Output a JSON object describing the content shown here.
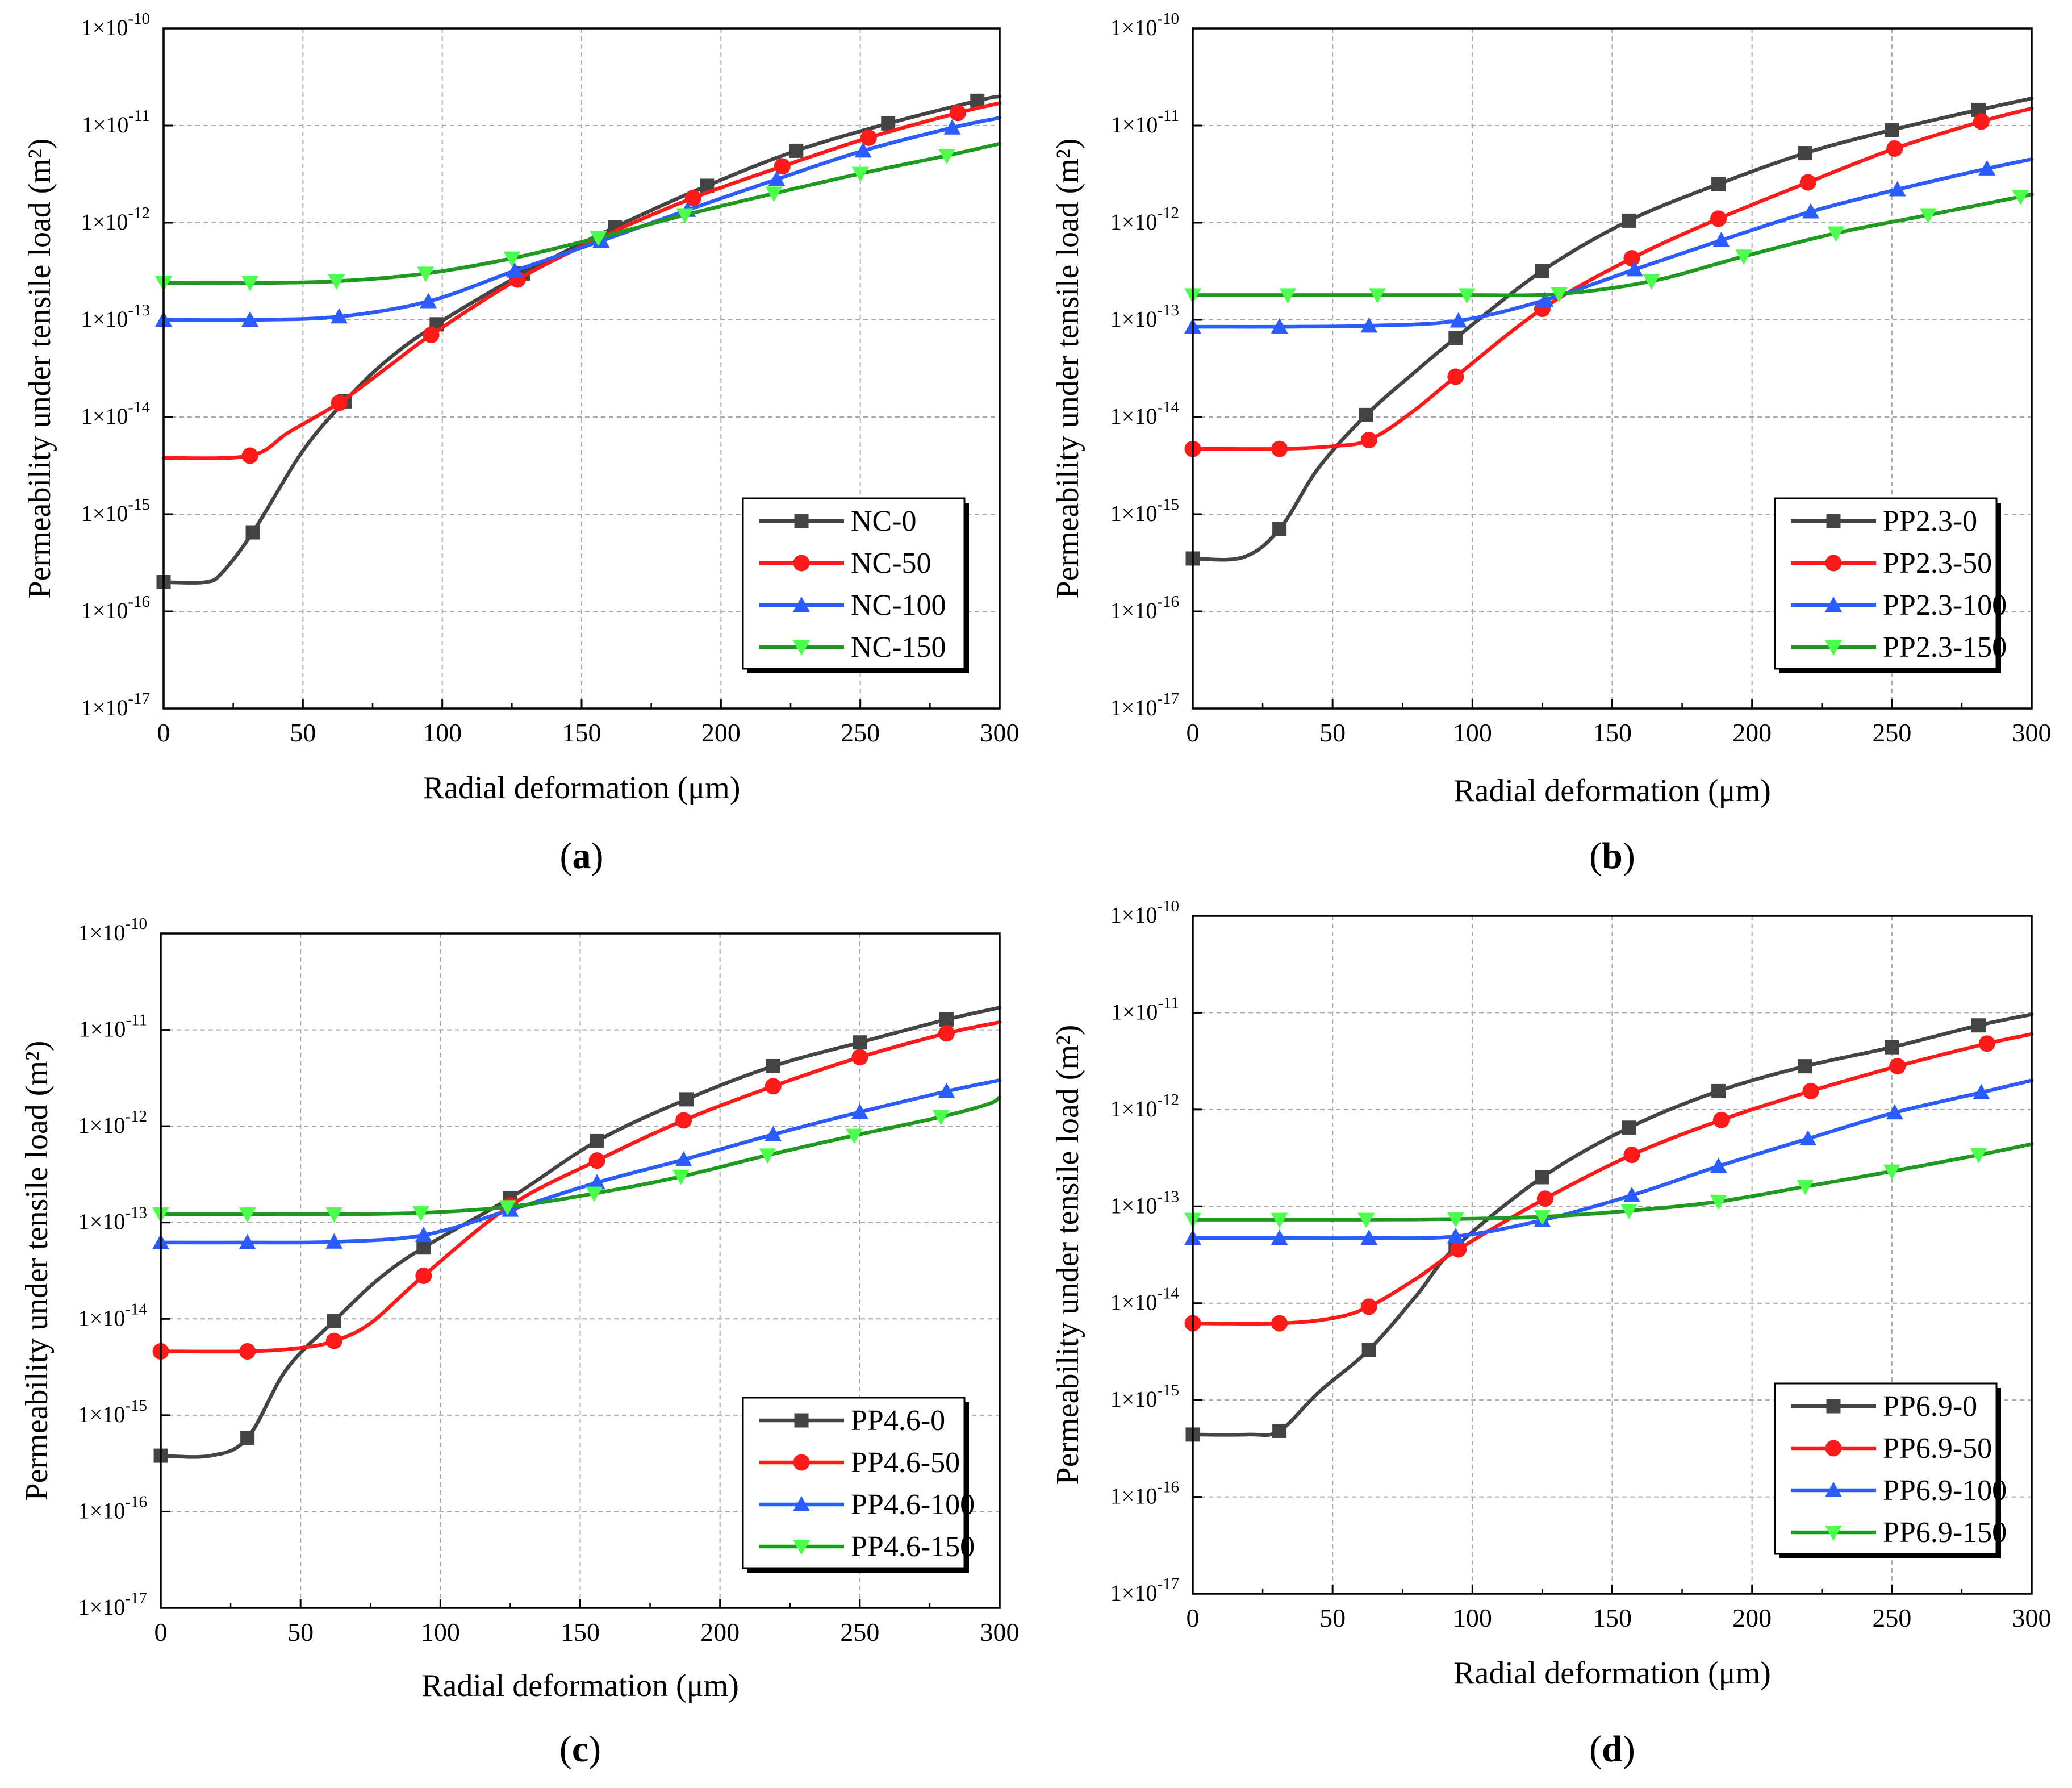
{
  "colors": {
    "NC-0": "#444444",
    "red": "#ff1a1a",
    "blue": "#2a5cff",
    "green": "#1e9a1e",
    "green_marker": "#4dff4d"
  },
  "tick_exponents": [
    "-10",
    "-11",
    "-12",
    "-13",
    "-14",
    "-15",
    "-16",
    "-17"
  ],
  "chart_data": [
    {
      "type": "line",
      "panel_label": "a",
      "xlabel": "Radial deformation (μm)",
      "ylabel": "Permeability under tensile load (m²)",
      "y_scale": "log",
      "xlim": [
        0,
        300
      ],
      "ylim": [
        1e-17,
        1e-10
      ],
      "x_ticks": [
        0,
        50,
        100,
        150,
        200,
        250,
        300
      ],
      "grid": true,
      "legend": "bottom-right",
      "series": [
        {
          "name": "NC-0",
          "color": "#444444",
          "marker": "square",
          "x": [
            0,
            15,
            21,
            32,
            50,
            65,
            80,
            98,
            129,
            162,
            195,
            227,
            260,
            292,
            300
          ],
          "y": [
            2e-16,
            2e-16,
            2.5e-16,
            6.5e-16,
            4.5e-15,
            1.45e-14,
            3.8e-14,
            9e-14,
            3e-13,
            9e-13,
            2.4e-12,
            5.5e-12,
            1.05e-11,
            1.8e-11,
            2e-11
          ],
          "markers_x": [
            0,
            32,
            65,
            98,
            129,
            162,
            195,
            227,
            260,
            292
          ]
        },
        {
          "name": "NC-50",
          "color": "#ff1a1a",
          "marker": "circle",
          "x": [
            0,
            31,
            45,
            63,
            80,
            96,
            127,
            159,
            190,
            222,
            253,
            285,
            300
          ],
          "y": [
            3.8e-15,
            4e-15,
            7e-15,
            1.4e-14,
            3.2e-14,
            7e-14,
            2.6e-13,
            7.5e-13,
            1.8e-12,
            3.8e-12,
            7.5e-12,
            1.35e-11,
            1.7e-11
          ],
          "markers_x": [
            31,
            63,
            96,
            127,
            190,
            222,
            253,
            285
          ]
        },
        {
          "name": "NC-100",
          "color": "#2a5cff",
          "marker": "triangle-up",
          "x": [
            0,
            31,
            63,
            95,
            126,
            157,
            188,
            220,
            251,
            283,
            300
          ],
          "y": [
            1e-13,
            1e-13,
            1.08e-13,
            1.55e-13,
            3.2e-13,
            6.5e-13,
            1.35e-12,
            2.8e-12,
            5.5e-12,
            9.5e-12,
            1.2e-11
          ],
          "markers_x": [
            0,
            31,
            63,
            95,
            126,
            157,
            188,
            220,
            251,
            283
          ]
        },
        {
          "name": "NC-150",
          "color": "#1e9a1e",
          "marker": "triangle-down",
          "x": [
            0,
            31,
            62,
            94,
            125,
            156,
            187,
            219,
            250,
            281,
            300
          ],
          "y": [
            2.4e-13,
            2.4e-13,
            2.5e-13,
            3e-13,
            4.3e-13,
            7e-13,
            1.2e-12,
            2e-12,
            3.2e-12,
            4.9e-12,
            6.5e-12
          ],
          "markers_x": [
            0,
            31,
            62,
            94,
            125,
            156,
            187,
            219,
            250,
            281
          ]
        }
      ]
    },
    {
      "type": "line",
      "panel_label": "b",
      "xlabel": "Radial deformation (μm)",
      "ylabel": "Permeability under tensile load (m²)",
      "y_scale": "log",
      "xlim": [
        0,
        300
      ],
      "ylim": [
        1e-17,
        1e-10
      ],
      "x_ticks": [
        0,
        50,
        100,
        150,
        200,
        250,
        300
      ],
      "grid": true,
      "legend": "bottom-right",
      "series": [
        {
          "name": "PP2.3-0",
          "color": "#444444",
          "marker": "square",
          "x": [
            0,
            18,
            31,
            45,
            62,
            80,
            94,
            125,
            156,
            188,
            219,
            250,
            281,
            300
          ],
          "y": [
            3.5e-16,
            3.6e-16,
            7e-16,
            3e-15,
            1.05e-14,
            3e-14,
            6.5e-14,
            3.2e-13,
            1.05e-12,
            2.5e-12,
            5.2e-12,
            9e-12,
            1.45e-11,
            1.9e-11
          ],
          "markers_x": [
            0,
            31,
            62,
            94,
            125,
            156,
            188,
            219,
            250,
            281
          ]
        },
        {
          "name": "PP2.3-50",
          "color": "#ff1a1a",
          "marker": "circle",
          "x": [
            0,
            31,
            50,
            63,
            78,
            94,
            125,
            157,
            188,
            220,
            251,
            282,
            300
          ],
          "y": [
            4.7e-15,
            4.7e-15,
            5e-15,
            5.8e-15,
            1.1e-14,
            2.6e-14,
            1.3e-13,
            4.3e-13,
            1.1e-12,
            2.6e-12,
            5.8e-12,
            1.1e-11,
            1.5e-11
          ],
          "markers_x": [
            0,
            31,
            63,
            94,
            125,
            157,
            188,
            220,
            251,
            282
          ]
        },
        {
          "name": "PP2.3-100",
          "color": "#2a5cff",
          "marker": "triangle-up",
          "x": [
            0,
            31,
            63,
            95,
            126,
            158,
            189,
            221,
            252,
            284,
            300
          ],
          "y": [
            8.5e-14,
            8.5e-14,
            8.7e-14,
            9.8e-14,
            1.6e-13,
            3.3e-13,
            6.6e-13,
            1.3e-12,
            2.2e-12,
            3.6e-12,
            4.5e-12
          ],
          "markers_x": [
            0,
            31,
            63,
            95,
            126,
            158,
            189,
            221,
            252,
            284
          ]
        },
        {
          "name": "PP2.3-150",
          "color": "#1e9a1e",
          "marker": "triangle-down",
          "x": [
            0,
            34,
            66,
            98,
            131,
            164,
            197,
            230,
            263,
            296,
            300
          ],
          "y": [
            1.8e-13,
            1.8e-13,
            1.8e-13,
            1.8e-13,
            1.85e-13,
            2.5e-13,
            4.5e-13,
            7.8e-13,
            1.2e-12,
            1.85e-12,
            1.95e-12
          ],
          "markers_x": [
            0,
            34,
            66,
            98,
            131,
            164,
            197,
            230,
            263,
            296
          ]
        }
      ]
    },
    {
      "type": "line",
      "panel_label": "c",
      "xlabel": "Radial deformation (μm)",
      "ylabel": "Permeability under tensile load (m²)",
      "y_scale": "log",
      "xlim": [
        0,
        300
      ],
      "ylim": [
        1e-17,
        1e-10
      ],
      "x_ticks": [
        0,
        50,
        100,
        150,
        200,
        250,
        300
      ],
      "grid": true,
      "legend": "bottom-right",
      "series": [
        {
          "name": "PP4.6-0",
          "color": "#444444",
          "marker": "square",
          "x": [
            0,
            18,
            31,
            45,
            62,
            78,
            94,
            125,
            156,
            188,
            219,
            250,
            281,
            300
          ],
          "y": [
            3.8e-16,
            3.8e-16,
            5.8e-16,
            3e-15,
            9.5e-15,
            2.6e-14,
            5.5e-14,
            1.8e-13,
            7e-13,
            1.9e-12,
            4.2e-12,
            7.4e-12,
            1.28e-11,
            1.7e-11
          ],
          "markers_x": [
            0,
            31,
            62,
            94,
            125,
            156,
            188,
            219,
            250,
            281
          ]
        },
        {
          "name": "PP4.6-50",
          "color": "#ff1a1a",
          "marker": "circle",
          "x": [
            0,
            31,
            50,
            62,
            75,
            94,
            125,
            156,
            187,
            219,
            250,
            281,
            300
          ],
          "y": [
            4.6e-15,
            4.6e-15,
            5e-15,
            5.9e-15,
            9e-15,
            2.8e-14,
            1.5e-13,
            4.4e-13,
            1.15e-12,
            2.6e-12,
            5.2e-12,
            9.2e-12,
            1.2e-11
          ],
          "markers_x": [
            0,
            31,
            62,
            94,
            125,
            156,
            187,
            219,
            250,
            281
          ]
        },
        {
          "name": "PP4.6-100",
          "color": "#2a5cff",
          "marker": "triangle-up",
          "x": [
            0,
            31,
            62,
            94,
            125,
            156,
            187,
            219,
            250,
            281,
            300
          ],
          "y": [
            6.2e-14,
            6.2e-14,
            6.3e-14,
            7.4e-14,
            1.35e-13,
            2.6e-13,
            4.5e-13,
            8.2e-13,
            1.4e-12,
            2.3e-12,
            3e-12
          ],
          "markers_x": [
            0,
            31,
            62,
            94,
            125,
            156,
            187,
            219,
            250,
            281
          ]
        },
        {
          "name": "PP4.6-150",
          "color": "#1e9a1e",
          "marker": "triangle-down",
          "x": [
            0,
            31,
            62,
            93,
            124,
            155,
            186,
            217,
            248,
            279,
            296,
            300
          ],
          "y": [
            1.22e-13,
            1.22e-13,
            1.22e-13,
            1.26e-13,
            1.45e-13,
            2e-13,
            3e-13,
            5e-13,
            8e-13,
            1.25e-12,
            1.7e-12,
            2e-12
          ],
          "markers_x": [
            0,
            31,
            62,
            93,
            124,
            155,
            186,
            217,
            248,
            279
          ]
        }
      ]
    },
    {
      "type": "line",
      "panel_label": "d",
      "xlabel": "Radial deformation (μm)",
      "ylabel": "Permeability under tensile load (m²)",
      "y_scale": "log",
      "xlim": [
        0,
        300
      ],
      "ylim": [
        1e-17,
        1e-10
      ],
      "x_ticks": [
        0,
        50,
        100,
        150,
        200,
        250,
        300
      ],
      "grid": true,
      "legend": "bottom-right",
      "series": [
        {
          "name": "PP6.9-0",
          "color": "#444444",
          "marker": "square",
          "x": [
            0,
            20,
            31,
            45,
            63,
            80,
            94,
            125,
            156,
            188,
            219,
            250,
            281,
            300
          ],
          "y": [
            4.4e-16,
            4.4e-16,
            4.8e-16,
            1.2e-15,
            3.3e-15,
            1.2e-14,
            3.8e-14,
            2e-13,
            6.5e-13,
            1.55e-12,
            2.8e-12,
            4.4e-12,
            7.4e-12,
            9.6e-12
          ],
          "markers_x": [
            0,
            31,
            63,
            94,
            125,
            156,
            188,
            219,
            250,
            281
          ]
        },
        {
          "name": "PP6.9-50",
          "color": "#ff1a1a",
          "marker": "circle",
          "x": [
            0,
            31,
            50,
            63,
            80,
            95,
            126,
            157,
            189,
            221,
            252,
            284,
            300
          ],
          "y": [
            6.2e-15,
            6.2e-15,
            7e-15,
            9.2e-15,
            1.8e-14,
            3.6e-14,
            1.2e-13,
            3.4e-13,
            7.8e-13,
            1.55e-12,
            2.8e-12,
            4.8e-12,
            6e-12
          ],
          "markers_x": [
            0,
            31,
            63,
            95,
            126,
            157,
            189,
            221,
            252,
            284
          ]
        },
        {
          "name": "PP6.9-100",
          "color": "#2a5cff",
          "marker": "triangle-up",
          "x": [
            0,
            31,
            63,
            94,
            125,
            157,
            188,
            220,
            251,
            282,
            300
          ],
          "y": [
            4.7e-14,
            4.7e-14,
            4.7e-14,
            4.9e-14,
            7.2e-14,
            1.3e-13,
            2.6e-13,
            5e-13,
            9.3e-13,
            1.5e-12,
            2e-12
          ],
          "markers_x": [
            0,
            31,
            63,
            94,
            125,
            157,
            188,
            220,
            251,
            282
          ]
        },
        {
          "name": "PP6.9-150",
          "color": "#1e9a1e",
          "marker": "triangle-down",
          "x": [
            0,
            31,
            62,
            94,
            125,
            156,
            188,
            219,
            250,
            281,
            300
          ],
          "y": [
            7.3e-14,
            7.3e-14,
            7.3e-14,
            7.4e-14,
            7.8e-14,
            9e-14,
            1.12e-13,
            1.6e-13,
            2.3e-13,
            3.4e-13,
            4.4e-13
          ],
          "markers_x": [
            0,
            31,
            62,
            94,
            125,
            156,
            188,
            219,
            250,
            281
          ]
        }
      ]
    }
  ]
}
